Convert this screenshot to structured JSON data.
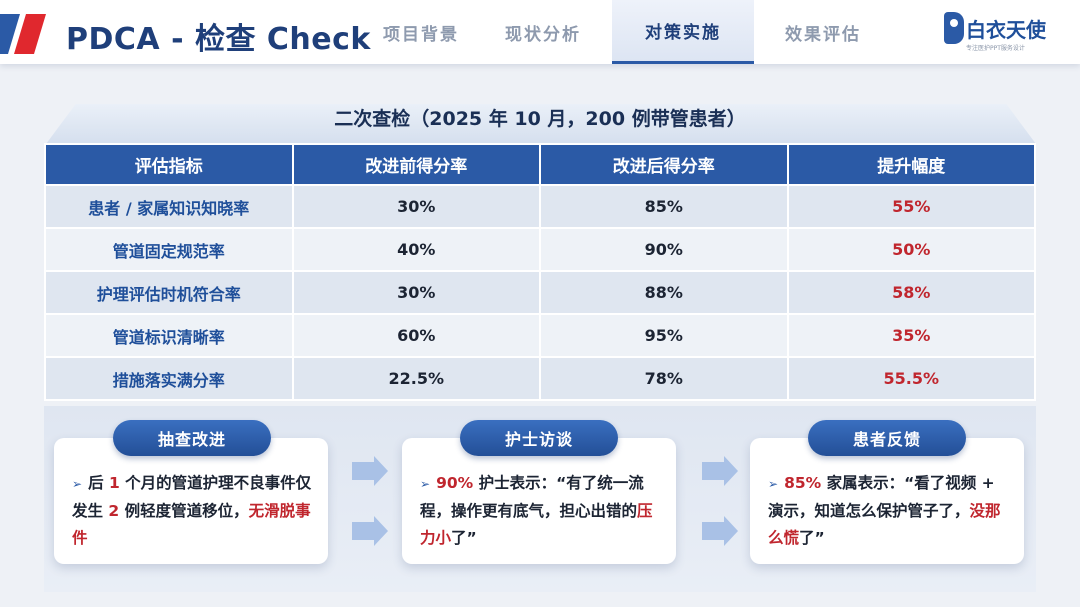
{
  "header": {
    "title": "PDCA - 检查 Check",
    "tabs": [
      {
        "label": "项目背景",
        "active": false
      },
      {
        "label": "现状分析",
        "active": false
      },
      {
        "label": "对策实施",
        "active": true
      },
      {
        "label": "效果评估",
        "active": false
      }
    ],
    "logo_text": "白衣天使",
    "logo_sub": "专注医护PPT服务设计"
  },
  "table": {
    "title": "二次查检（2025 年 10 月，200 例带管患者）",
    "columns": [
      "评估指标",
      "改进前得分率",
      "改进后得分率",
      "提升幅度"
    ],
    "rows": [
      {
        "metric": "患者 / 家属知识知晓率",
        "before": "30%",
        "after": "85%",
        "gain": "55%"
      },
      {
        "metric": "管道固定规范率",
        "before": "40%",
        "after": "90%",
        "gain": "50%"
      },
      {
        "metric": "护理评估时机符合率",
        "before": "30%",
        "after": "88%",
        "gain": "58%"
      },
      {
        "metric": "管道标识清晰率",
        "before": "60%",
        "after": "95%",
        "gain": "35%"
      },
      {
        "metric": "措施落实满分率",
        "before": "22.5%",
        "after": "78%",
        "gain": "55.5%"
      }
    ]
  },
  "cards": [
    {
      "label": "抽查改进",
      "t1": "后 ",
      "r1": "1",
      "t2": " 个月的管道护理不良事件仅发生 ",
      "r2": "2",
      "t3": " 例轻度管道移位，",
      "r3": "无滑脱事件"
    },
    {
      "label": "护士访谈",
      "r1": "90%",
      "t1": " 护士表示：“有了统一流程，操作更有底气，担心出错的",
      "r2": "压力小",
      "t2": "了”"
    },
    {
      "label": "患者反馈",
      "r1": "85%",
      "t1": " 家属表示：“看了视频 + 演示，知道怎么保护管子了，",
      "r2": "没那么慌",
      "t2": "了”"
    }
  ],
  "colors": {
    "primary": "#2b5aa6",
    "title": "#1f3f7a",
    "highlight": "#c0262e",
    "accent_red": "#e0282e"
  },
  "icons": [
    "bullet-arrow-icon",
    "chevron-right-icon"
  ]
}
